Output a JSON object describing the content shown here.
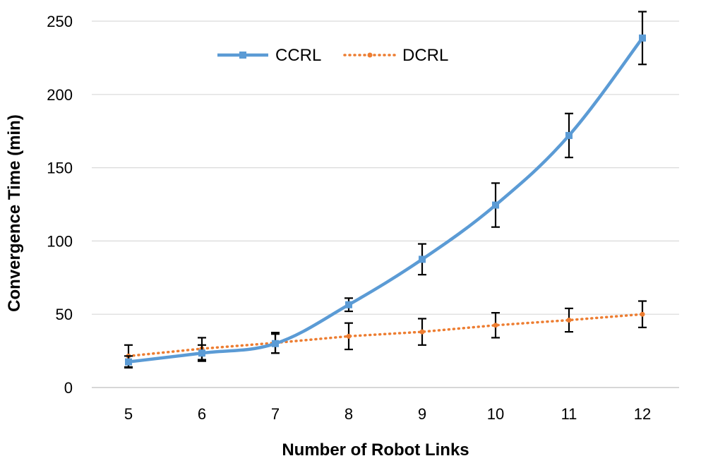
{
  "chart_data": {
    "type": "line",
    "title": "",
    "xlabel": "Number of Robot Links",
    "ylabel": "Convergence Time (min)",
    "x": [
      5,
      6,
      7,
      8,
      9,
      10,
      11,
      12
    ],
    "x_tick_labels": [
      "5",
      "6",
      "7",
      "8",
      "9",
      "10",
      "11",
      "12"
    ],
    "ylim": [
      0,
      250
    ],
    "y_ticks": [
      0,
      50,
      100,
      150,
      200,
      250
    ],
    "y_tick_labels": [
      "0",
      "50",
      "100",
      "150",
      "200",
      "250"
    ],
    "grid": "horizontal",
    "legend_position": "top-left",
    "series": [
      {
        "name": "CCRL",
        "color": "#5b9bd5",
        "line_style": "solid",
        "marker": "square",
        "values": [
          17.5,
          23.5,
          30,
          56.5,
          87.5,
          124.5,
          172,
          238.5
        ],
        "error": [
          4,
          5.5,
          6.5,
          4.5,
          10.5,
          15,
          15,
          18
        ]
      },
      {
        "name": "DCRL",
        "color": "#ed7d31",
        "line_style": "dotted",
        "marker": "circle",
        "values": [
          21.5,
          26.5,
          30.5,
          35,
          38,
          42.5,
          46,
          50
        ],
        "error": [
          7.5,
          7.5,
          7,
          9,
          9,
          8.5,
          8,
          9
        ]
      }
    ]
  }
}
